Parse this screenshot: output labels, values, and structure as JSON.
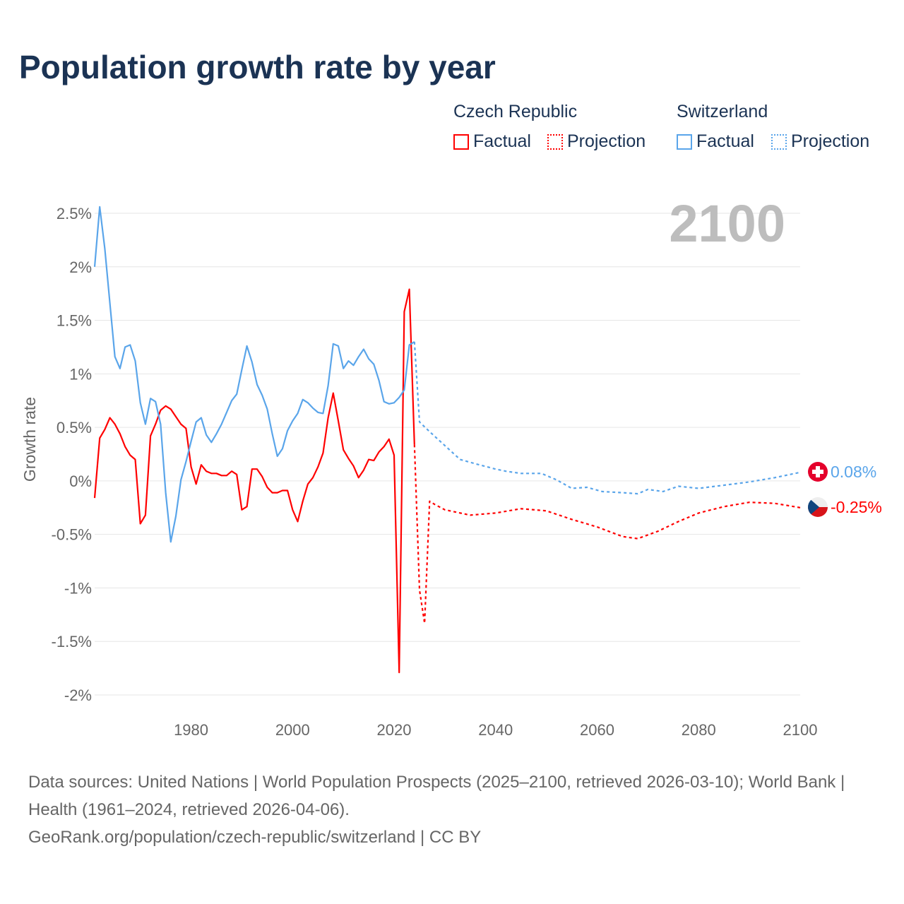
{
  "title": "Population growth rate by year",
  "legend": {
    "groups": [
      {
        "country": "Czech Republic",
        "factual": "Factual",
        "projection": "Projection",
        "color": "#ff0000"
      },
      {
        "country": "Switzerland",
        "factual": "Factual",
        "projection": "Projection",
        "color": "#5aa5ea"
      }
    ]
  },
  "year_watermark": "2100",
  "end_labels": {
    "switzerland": "0.08%",
    "czech": "-0.25%"
  },
  "footer": {
    "sources": "Data sources: United Nations | World Population Prospects (2025–2100, retrieved 2026-03-10); World Bank | Health (1961–2024, retrieved 2026-04-06).",
    "credit": "GeoRank.org/population/czech-republic/switzerland | CC BY"
  },
  "chart_data": {
    "type": "line",
    "title": "Population growth rate by year",
    "xlabel": "",
    "ylabel": "Growth rate",
    "xlim": [
      1961,
      2100
    ],
    "ylim": [
      -2,
      2.5
    ],
    "x_ticks": [
      "1980",
      "2000",
      "2020",
      "2040",
      "2060",
      "2080",
      "2100"
    ],
    "x_tick_values": [
      1980,
      2000,
      2020,
      2040,
      2060,
      2080,
      2100
    ],
    "y_ticks": [
      "-2%",
      "-1.5%",
      "-1%",
      "-0.5%",
      "0%",
      "0.5%",
      "1%",
      "1.5%",
      "2%",
      "2.5%"
    ],
    "y_tick_values": [
      -2,
      -1.5,
      -1,
      -0.5,
      0,
      0.5,
      1,
      1.5,
      2,
      2.5
    ],
    "grid": true,
    "legend_position": "top-right",
    "series": [
      {
        "name": "Czech Republic Factual",
        "color": "#ff0000",
        "dash": false,
        "x": [
          1961,
          1962,
          1963,
          1964,
          1965,
          1966,
          1967,
          1968,
          1969,
          1970,
          1971,
          1972,
          1973,
          1974,
          1975,
          1976,
          1977,
          1978,
          1979,
          1980,
          1981,
          1982,
          1983,
          1984,
          1985,
          1986,
          1987,
          1988,
          1989,
          1990,
          1991,
          1992,
          1993,
          1994,
          1995,
          1996,
          1997,
          1998,
          1999,
          2000,
          2001,
          2002,
          2003,
          2004,
          2005,
          2006,
          2007,
          2008,
          2009,
          2010,
          2011,
          2012,
          2013,
          2014,
          2015,
          2016,
          2017,
          2018,
          2019,
          2020,
          2021,
          2022,
          2023,
          2024
        ],
        "y": [
          -0.16,
          0.4,
          0.48,
          0.59,
          0.53,
          0.44,
          0.32,
          0.24,
          0.2,
          -0.4,
          -0.32,
          0.42,
          0.53,
          0.66,
          0.7,
          0.67,
          0.6,
          0.53,
          0.49,
          0.13,
          -0.03,
          0.15,
          0.09,
          0.07,
          0.07,
          0.05,
          0.05,
          0.09,
          0.06,
          -0.27,
          -0.24,
          0.11,
          0.11,
          0.04,
          -0.06,
          -0.11,
          -0.11,
          -0.09,
          -0.09,
          -0.27,
          -0.38,
          -0.19,
          -0.03,
          0.03,
          0.13,
          0.26,
          0.59,
          0.82,
          0.56,
          0.29,
          0.21,
          0.14,
          0.03,
          0.1,
          0.2,
          0.19,
          0.27,
          0.32,
          0.39,
          0.24,
          -1.79,
          1.58,
          1.79,
          0.34
        ]
      },
      {
        "name": "Czech Republic Projection",
        "color": "#ff0000",
        "dash": true,
        "x": [
          2024,
          2025,
          2026,
          2027,
          2028,
          2030,
          2035,
          2040,
          2045,
          2050,
          2055,
          2060,
          2065,
          2068,
          2072,
          2076,
          2080,
          2085,
          2090,
          2095,
          2100
        ],
        "y": [
          0.34,
          -1.02,
          -1.33,
          -0.19,
          -0.22,
          -0.27,
          -0.32,
          -0.3,
          -0.26,
          -0.28,
          -0.36,
          -0.43,
          -0.52,
          -0.54,
          -0.47,
          -0.38,
          -0.3,
          -0.24,
          -0.2,
          -0.21,
          -0.25
        ]
      },
      {
        "name": "Switzerland Factual",
        "color": "#5aa5ea",
        "dash": false,
        "x": [
          1961,
          1962,
          1963,
          1964,
          1965,
          1966,
          1967,
          1968,
          1969,
          1970,
          1971,
          1972,
          1973,
          1974,
          1975,
          1976,
          1977,
          1978,
          1979,
          1980,
          1981,
          1982,
          1983,
          1984,
          1985,
          1986,
          1987,
          1988,
          1989,
          1990,
          1991,
          1992,
          1993,
          1994,
          1995,
          1996,
          1997,
          1998,
          1999,
          2000,
          2001,
          2002,
          2003,
          2004,
          2005,
          2006,
          2007,
          2008,
          2009,
          2010,
          2011,
          2012,
          2013,
          2014,
          2015,
          2016,
          2017,
          2018,
          2019,
          2020,
          2021,
          2022,
          2023,
          2024
        ],
        "y": [
          2.0,
          2.56,
          2.17,
          1.66,
          1.16,
          1.05,
          1.25,
          1.27,
          1.12,
          0.73,
          0.53,
          0.77,
          0.74,
          0.53,
          -0.11,
          -0.57,
          -0.33,
          0.01,
          0.18,
          0.37,
          0.55,
          0.59,
          0.43,
          0.36,
          0.44,
          0.53,
          0.64,
          0.75,
          0.81,
          1.04,
          1.26,
          1.11,
          0.9,
          0.8,
          0.67,
          0.44,
          0.23,
          0.3,
          0.47,
          0.56,
          0.63,
          0.76,
          0.73,
          0.68,
          0.64,
          0.63,
          0.89,
          1.28,
          1.26,
          1.05,
          1.12,
          1.08,
          1.16,
          1.23,
          1.14,
          1.09,
          0.94,
          0.74,
          0.72,
          0.73,
          0.78,
          0.85,
          1.27,
          1.3
        ]
      },
      {
        "name": "Switzerland Projection",
        "color": "#5aa5ea",
        "dash": true,
        "x": [
          2024,
          2025,
          2027,
          2030,
          2033,
          2036,
          2040,
          2042,
          2045,
          2049,
          2052,
          2055,
          2058,
          2061,
          2065,
          2068,
          2070,
          2073,
          2076,
          2080,
          2085,
          2090,
          2095,
          2100
        ],
        "y": [
          1.3,
          0.55,
          0.46,
          0.33,
          0.2,
          0.16,
          0.11,
          0.09,
          0.07,
          0.07,
          0.01,
          -0.07,
          -0.06,
          -0.1,
          -0.11,
          -0.12,
          -0.08,
          -0.1,
          -0.05,
          -0.07,
          -0.04,
          -0.01,
          0.03,
          0.08
        ]
      }
    ]
  }
}
